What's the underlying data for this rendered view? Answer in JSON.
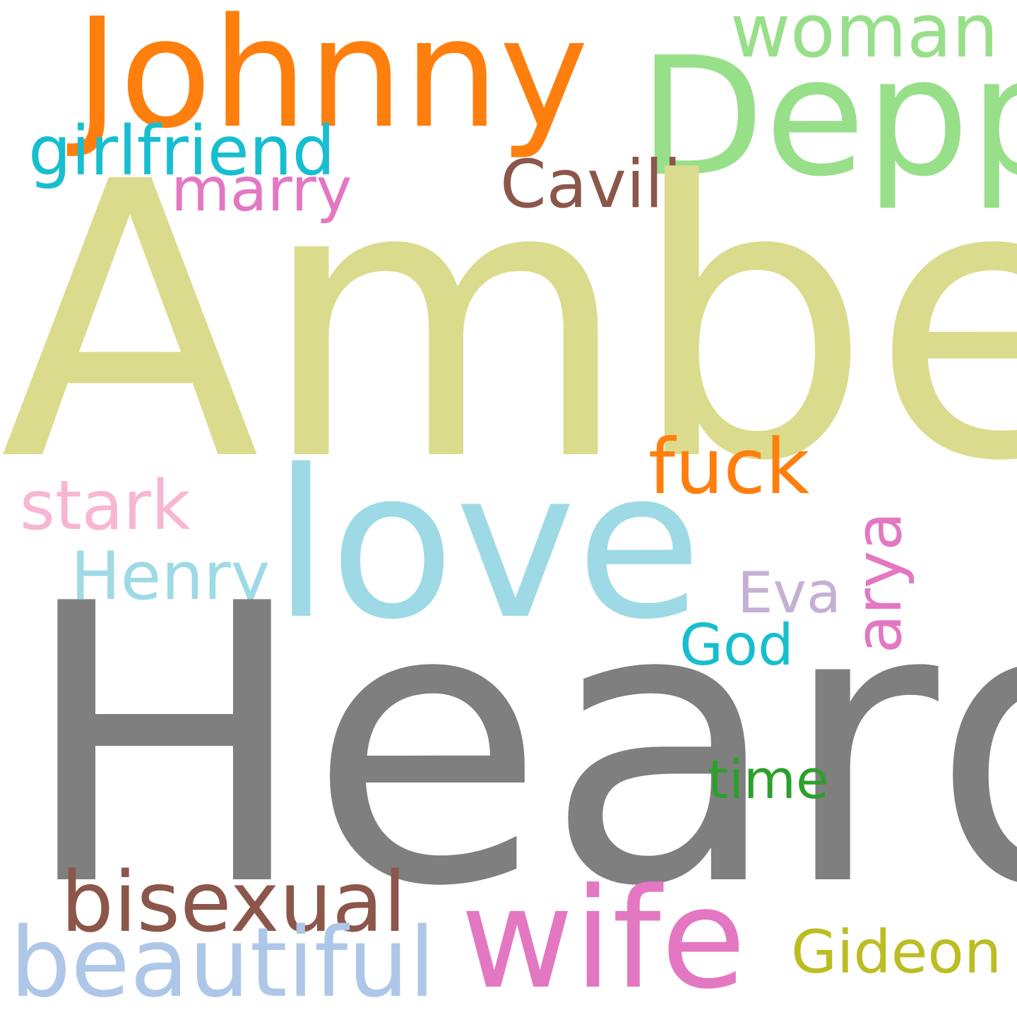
{
  "words": {
    "amber": {
      "text": "Amber",
      "color": "#dbdb8d"
    },
    "heard": {
      "text": "Heard",
      "color": "#7f7f7f"
    },
    "love": {
      "text": "love",
      "color": "#9edae5"
    },
    "johnny": {
      "text": "Johnny",
      "color": "#ff7f0e"
    },
    "depp": {
      "text": "Depp",
      "color": "#98df8a"
    },
    "wife": {
      "text": "wife",
      "color": "#e377c2"
    },
    "beautiful": {
      "text": "beautiful",
      "color": "#aec7e8"
    },
    "bisexual": {
      "text": "bisexual",
      "color": "#8c564b"
    },
    "woman": {
      "text": "woman",
      "color": "#98df8a"
    },
    "girlfriend": {
      "text": "girlfriend",
      "color": "#17becf"
    },
    "cavill": {
      "text": "Cavill",
      "color": "#8c564b"
    },
    "marry": {
      "text": "marry",
      "color": "#e377c2"
    },
    "fuck": {
      "text": "fuck",
      "color": "#ff7f0e"
    },
    "arya": {
      "text": "arya",
      "color": "#e377c2"
    },
    "stark": {
      "text": "stark",
      "color": "#f7b6d2"
    },
    "henry": {
      "text": "Henry",
      "color": "#9edae5"
    },
    "eva": {
      "text": "Eva",
      "color": "#c5b0d5"
    },
    "god": {
      "text": "God",
      "color": "#17becf"
    },
    "time": {
      "text": "time",
      "color": "#2ca02c"
    },
    "gideon": {
      "text": "Gideon",
      "color": "#bcbd22"
    }
  }
}
